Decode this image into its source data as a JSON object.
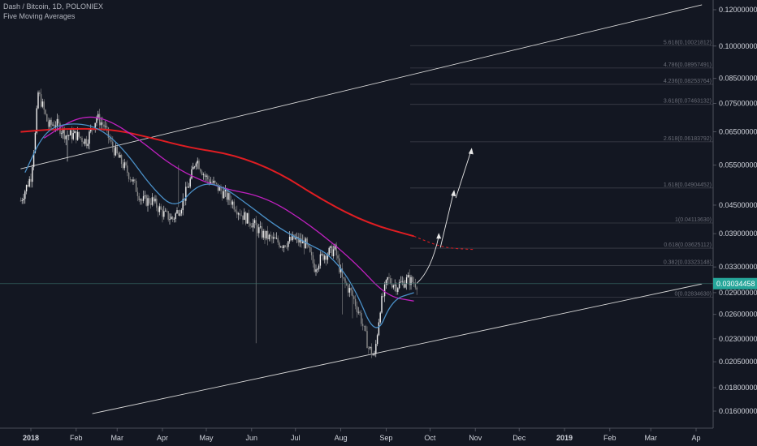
{
  "header": {
    "symbol_line": "Dash / Bitcoin, 1D, POLONIEX",
    "indicator": "Five Moving Averages"
  },
  "colors": {
    "background": "#131722",
    "up_candle": "#f0f0f0",
    "down_candle": "#8a8a8a",
    "ma_red": "#e01d22",
    "ma_magenta": "#c020c0",
    "ma_blue": "#4a90c8",
    "trendline": "#d8d8d8",
    "fib_line": "#3c3f4a",
    "fib_text": "#6a6d78",
    "price_tag_bg": "#26a69a",
    "axis_text": "#d1d4dc"
  },
  "chart_data": {
    "type": "candlestick",
    "title": "Dash / Bitcoin, 1D, POLONIEX",
    "y_scale": "log",
    "y_axis_labels": [
      "0.12000000",
      "0.10000000",
      "0.08500000",
      "0.07500000",
      "0.06500000",
      "0.05500000",
      "0.04500000",
      "0.03900000",
      "0.03300000",
      "0.02900000",
      "0.02600000",
      "0.02300000",
      "0.02050000",
      "0.01800000",
      "0.01600000"
    ],
    "x_axis_labels": [
      "2018",
      "Feb",
      "Mar",
      "Apr",
      "May",
      "Jun",
      "Jul",
      "Aug",
      "Sep",
      "Oct",
      "Nov",
      "Dec",
      "2019",
      "Feb",
      "Mar",
      "Ap"
    ],
    "current_price": "0.03034458",
    "fib_levels": [
      {
        "label": "5.618(0.10021812)",
        "value": 0.10021812
      },
      {
        "label": "4.786(0.08957491)",
        "value": 0.08957491
      },
      {
        "label": "4.236(0.08253764)",
        "value": 0.08253764
      },
      {
        "label": "3.618(0.07463132)",
        "value": 0.07463132
      },
      {
        "label": "2.618(0.06183792)",
        "value": 0.06183792
      },
      {
        "label": "1.618(0.04904452)",
        "value": 0.04904452
      },
      {
        "label": "1(0.04113630)",
        "value": 0.0411363
      },
      {
        "label": "0.618(0.03625112)",
        "value": 0.03625112
      },
      {
        "label": "0.382(0.03323148)",
        "value": 0.03323148
      },
      {
        "label": "0(0.02834630)",
        "value": 0.0283463
      }
    ],
    "price_path": [
      [
        "2017-12-25",
        0.046
      ],
      [
        "2018-01-01",
        0.052
      ],
      [
        "2018-01-04",
        0.064
      ],
      [
        "2018-01-06",
        0.079
      ],
      [
        "2018-01-09",
        0.074
      ],
      [
        "2018-01-13",
        0.067
      ],
      [
        "2018-01-18",
        0.068
      ],
      [
        "2018-01-25",
        0.064
      ],
      [
        "2018-02-01",
        0.064
      ],
      [
        "2018-02-08",
        0.062
      ],
      [
        "2018-02-15",
        0.07
      ],
      [
        "2018-02-20",
        0.067
      ],
      [
        "2018-02-25",
        0.061
      ],
      [
        "2018-03-02",
        0.057
      ],
      [
        "2018-03-10",
        0.052
      ],
      [
        "2018-03-18",
        0.046
      ],
      [
        "2018-03-25",
        0.046
      ],
      [
        "2018-04-02",
        0.043
      ],
      [
        "2018-04-08",
        0.042
      ],
      [
        "2018-04-14",
        0.045
      ],
      [
        "2018-04-20",
        0.051
      ],
      [
        "2018-04-24",
        0.057
      ],
      [
        "2018-04-30",
        0.052
      ],
      [
        "2018-05-06",
        0.05
      ],
      [
        "2018-05-12",
        0.048
      ],
      [
        "2018-05-18",
        0.046
      ],
      [
        "2018-05-25",
        0.043
      ],
      [
        "2018-06-02",
        0.041
      ],
      [
        "2018-06-08",
        0.039
      ],
      [
        "2018-06-14",
        0.038
      ],
      [
        "2018-06-22",
        0.037
      ],
      [
        "2018-06-30",
        0.038
      ],
      [
        "2018-07-08",
        0.037
      ],
      [
        "2018-07-14",
        0.033
      ],
      [
        "2018-07-20",
        0.035
      ],
      [
        "2018-07-28",
        0.036
      ],
      [
        "2018-08-02",
        0.031
      ],
      [
        "2018-08-08",
        0.029
      ],
      [
        "2018-08-14",
        0.026
      ],
      [
        "2018-08-20",
        0.022
      ],
      [
        "2018-08-24",
        0.021
      ],
      [
        "2018-08-28",
        0.027
      ],
      [
        "2018-09-02",
        0.031
      ],
      [
        "2018-09-08",
        0.03
      ],
      [
        "2018-09-16",
        0.031
      ],
      [
        "2018-09-22",
        0.0303
      ]
    ],
    "series": [
      {
        "name": "MA red",
        "color": "#e01d22",
        "points": [
          [
            "2017-12-25",
            0.065
          ],
          [
            "2018-01-20",
            0.066
          ],
          [
            "2018-02-25",
            0.066
          ],
          [
            "2018-03-25",
            0.063
          ],
          [
            "2018-04-20",
            0.06
          ],
          [
            "2018-05-20",
            0.058
          ],
          [
            "2018-06-20",
            0.053
          ],
          [
            "2018-07-20",
            0.046
          ],
          [
            "2018-08-20",
            0.041
          ],
          [
            "2018-09-20",
            0.0385
          ]
        ]
      },
      {
        "name": "MA red projection",
        "color": "#e01d22",
        "dashed": true,
        "points": [
          [
            "2018-09-20",
            0.0385
          ],
          [
            "2018-10-10",
            0.0363
          ],
          [
            "2018-11-01",
            0.036
          ]
        ]
      },
      {
        "name": "MA magenta",
        "color": "#c020c0",
        "points": [
          [
            "2018-01-10",
            0.063
          ],
          [
            "2018-02-01",
            0.07
          ],
          [
            "2018-02-20",
            0.07
          ],
          [
            "2018-03-15",
            0.063
          ],
          [
            "2018-04-10",
            0.054
          ],
          [
            "2018-05-10",
            0.049
          ],
          [
            "2018-06-10",
            0.047
          ],
          [
            "2018-07-10",
            0.041
          ],
          [
            "2018-08-10",
            0.034
          ],
          [
            "2018-09-01",
            0.0285
          ],
          [
            "2018-09-20",
            0.0278
          ]
        ]
      },
      {
        "name": "MA blue",
        "color": "#4a90c8",
        "points": [
          [
            "2017-12-28",
            0.053
          ],
          [
            "2018-01-10",
            0.065
          ],
          [
            "2018-01-25",
            0.068
          ],
          [
            "2018-02-15",
            0.067
          ],
          [
            "2018-03-05",
            0.06
          ],
          [
            "2018-03-25",
            0.049
          ],
          [
            "2018-04-10",
            0.044
          ],
          [
            "2018-04-25",
            0.05
          ],
          [
            "2018-05-10",
            0.05
          ],
          [
            "2018-05-30",
            0.045
          ],
          [
            "2018-06-20",
            0.04
          ],
          [
            "2018-07-10",
            0.037
          ],
          [
            "2018-07-25",
            0.035
          ],
          [
            "2018-08-10",
            0.03
          ],
          [
            "2018-08-25",
            0.023
          ],
          [
            "2018-09-05",
            0.028
          ],
          [
            "2018-09-20",
            0.029
          ]
        ]
      }
    ],
    "trendlines": [
      {
        "from": [
          "2017-12-25",
          0.054
        ],
        "to": [
          "2019-04-05",
          0.123
        ]
      },
      {
        "from": [
          "2018-02-12",
          0.0158
        ],
        "to": [
          "2019-04-05",
          0.0303
        ]
      }
    ],
    "projection_arrow": [
      [
        "2018-09-22",
        0.0304
      ],
      [
        "2018-10-02",
        0.0325
      ],
      [
        "2018-10-07",
        0.0385
      ],
      [
        "2018-10-17",
        0.0478
      ],
      [
        "2018-10-29",
        0.059
      ]
    ]
  }
}
